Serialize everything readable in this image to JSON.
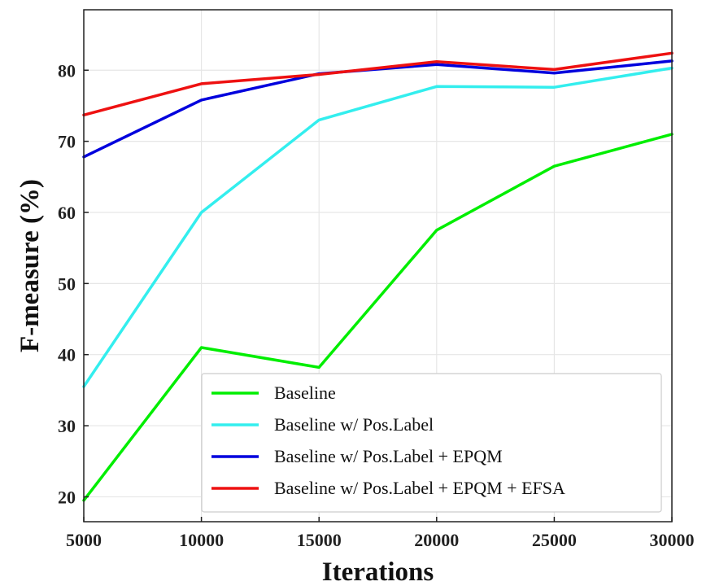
{
  "chart_data": {
    "type": "line",
    "xlabel": "Iterations",
    "ylabel": "F-measure (%)",
    "x": [
      5000,
      10000,
      15000,
      20000,
      25000,
      30000
    ],
    "xlim": [
      5000,
      30000
    ],
    "ylim": [
      16.5,
      88.5
    ],
    "xticks": [
      "5000",
      "10000",
      "15000",
      "20000",
      "25000",
      "30000"
    ],
    "yticks": [
      20,
      30,
      40,
      50,
      60,
      70,
      80
    ],
    "grid": true,
    "legend_position": "bottom-right",
    "series": [
      {
        "name": "Baseline",
        "color": "#00ee00",
        "values": [
          19.5,
          41.0,
          38.2,
          57.5,
          66.5,
          71.0
        ]
      },
      {
        "name": "Baseline w/ Pos.Label",
        "color": "#33eeee",
        "values": [
          35.5,
          60.0,
          73.0,
          77.7,
          77.6,
          80.3
        ]
      },
      {
        "name": "Baseline w/ Pos.Label + EPQM",
        "color": "#0000dd",
        "values": [
          67.8,
          75.8,
          79.5,
          80.8,
          79.6,
          81.3
        ]
      },
      {
        "name": "Baseline w/ Pos.Label + EPQM + EFSA",
        "color": "#ee1111",
        "values": [
          73.7,
          78.1,
          79.4,
          81.2,
          80.1,
          82.4
        ]
      }
    ]
  }
}
